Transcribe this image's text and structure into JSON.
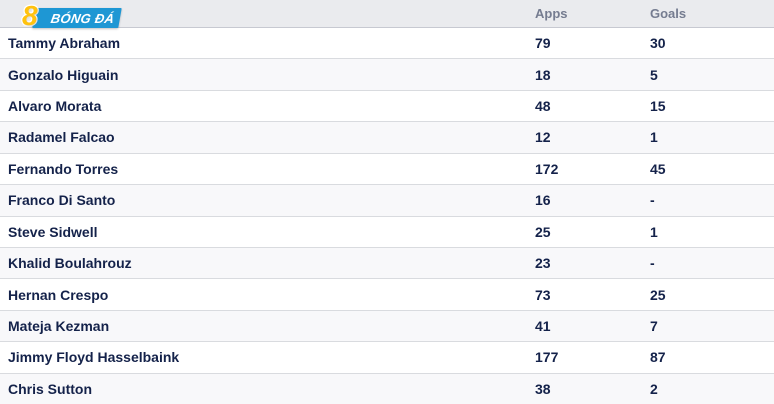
{
  "logo": {
    "number": "8",
    "text": "BÓNG ĐÁ",
    "blue": "#1e97d4",
    "yellow": "#ffc20e"
  },
  "colors": {
    "header_bg": "#eaebee",
    "header_text": "#757c90",
    "row_alt_bg": "#f8f8fa",
    "row_border": "#d9dbdf",
    "text_navy": "#14224a"
  },
  "table": {
    "columns": [
      "Apps",
      "Goals"
    ],
    "rows": [
      {
        "player": "Tammy Abraham",
        "apps": "79",
        "goals": "30"
      },
      {
        "player": "Gonzalo Higuain",
        "apps": "18",
        "goals": "5"
      },
      {
        "player": "Alvaro Morata",
        "apps": "48",
        "goals": "15"
      },
      {
        "player": "Radamel Falcao",
        "apps": "12",
        "goals": "1"
      },
      {
        "player": "Fernando Torres",
        "apps": "172",
        "goals": "45"
      },
      {
        "player": "Franco Di Santo",
        "apps": "16",
        "goals": "-"
      },
      {
        "player": "Steve Sidwell",
        "apps": "25",
        "goals": "1"
      },
      {
        "player": "Khalid Boulahrouz",
        "apps": "23",
        "goals": "-"
      },
      {
        "player": "Hernan Crespo",
        "apps": "73",
        "goals": "25"
      },
      {
        "player": "Mateja Kezman",
        "apps": "41",
        "goals": "7"
      },
      {
        "player": "Jimmy Floyd Hasselbaink",
        "apps": "177",
        "goals": "87"
      },
      {
        "player": "Chris Sutton",
        "apps": "38",
        "goals": "2"
      }
    ]
  }
}
